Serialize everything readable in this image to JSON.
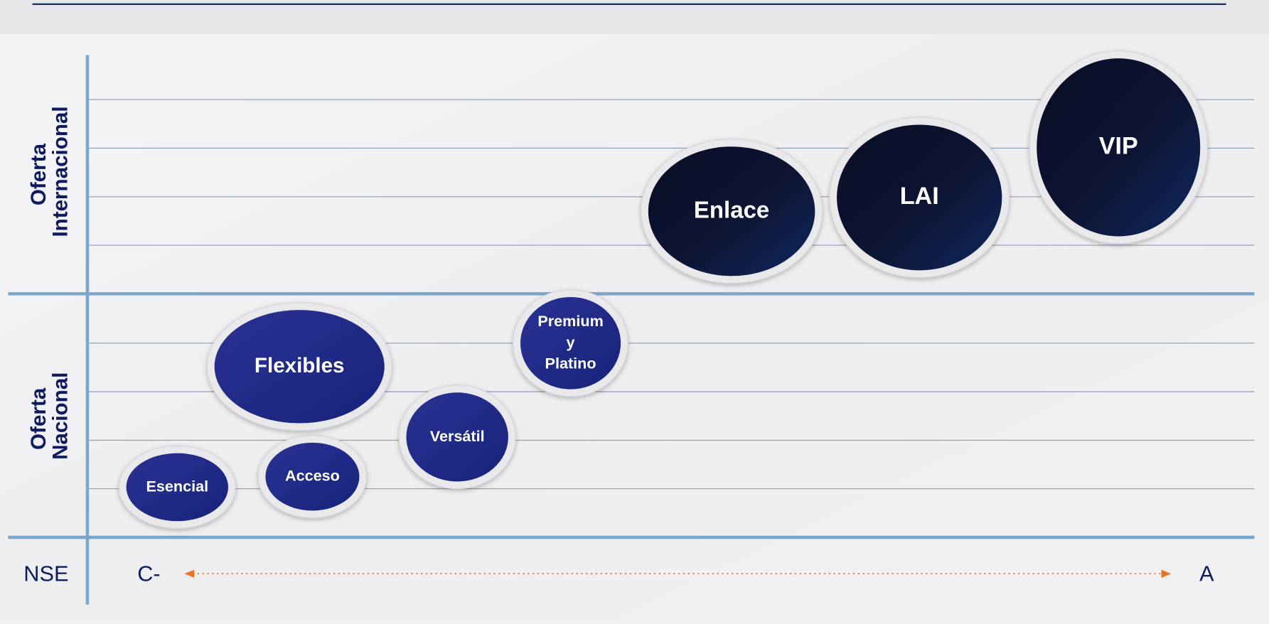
{
  "y_axis": {
    "international": [
      "Oferta",
      "Internacional"
    ],
    "national": [
      "Oferta",
      "Nacional"
    ]
  },
  "x_axis": {
    "label": "NSE",
    "start": "C-",
    "end": "A"
  },
  "bubbles": [
    {
      "label": [
        "Esencial"
      ]
    },
    {
      "label": [
        "Acceso"
      ]
    },
    {
      "label": [
        "Flexibles"
      ]
    },
    {
      "label": [
        "Versátil"
      ]
    },
    {
      "label": [
        "Premium",
        "y",
        "Platino"
      ]
    },
    {
      "label": [
        "Enlace"
      ]
    },
    {
      "label": [
        "LAI"
      ]
    },
    {
      "label": [
        "VIP"
      ]
    }
  ]
}
